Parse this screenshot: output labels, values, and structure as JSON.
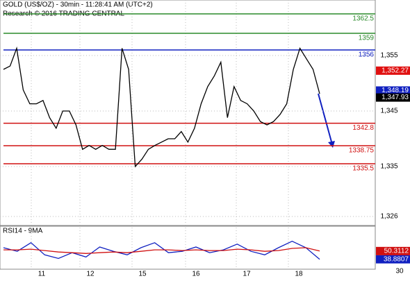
{
  "chart_data": [
    {
      "type": "line",
      "title": "GOLD (US$/OZ) - 30min - 11:28:41 AM (UTC+2)",
      "subtitle": "Research © 2016 TRADING CENTRAL",
      "x_labels": [
        "11",
        "12",
        "15",
        "16",
        "17",
        "18"
      ],
      "ylim": [
        1325,
        1365
      ],
      "yticks": [
        {
          "value": 1355,
          "label": "1,355"
        },
        {
          "value": 1345,
          "label": "1,345"
        },
        {
          "value": 1335,
          "label": "1,335"
        },
        {
          "value": 1326,
          "label": "1,326"
        }
      ],
      "grid": true,
      "series": [
        {
          "name": "GOLD",
          "color": "#000000",
          "values": [
            1352.5,
            1353.1,
            1356.3,
            1348.8,
            1346.3,
            1346.3,
            1346.9,
            1343.8,
            1341.9,
            1345,
            1345,
            1342.5,
            1338.1,
            1338.8,
            1338.1,
            1338.8,
            1338.1,
            1338.1,
            1356.3,
            1352.5,
            1335,
            1336.3,
            1338.1,
            1338.8,
            1339.4,
            1340,
            1340,
            1341.3,
            1339.4,
            1341.9,
            1346.3,
            1349.4,
            1351.3,
            1353.8,
            1343.8,
            1349.4,
            1346.9,
            1346.3,
            1345,
            1343.1,
            1342.5,
            1343.1,
            1344.4,
            1346.3,
            1352.5,
            1356.3,
            1354.4,
            1352.5,
            1348.1
          ]
        }
      ],
      "levels": [
        {
          "value": 1362.5,
          "color": "#2a8a2a"
        },
        {
          "value": 1359,
          "color": "#2a8a2a"
        },
        {
          "value": 1356,
          "color": "#1020c0"
        },
        {
          "value": 1342.8,
          "color": "#d01010"
        },
        {
          "value": 1338.75,
          "color": "#d01010"
        },
        {
          "value": 1335.5,
          "color": "#d01010"
        }
      ],
      "price_labels": [
        {
          "value": 1352.27,
          "label": "1,352.27",
          "color": "#e01010"
        },
        {
          "value": 1348.19,
          "label": "1,348.19",
          "color": "#1020c0"
        },
        {
          "value": 1347.93,
          "label": "1,347.93",
          "color": "#000000"
        }
      ]
    },
    {
      "type": "line",
      "title": "RSI14 - 9MA",
      "ylim": [
        25,
        85
      ],
      "yticks": [
        30
      ],
      "series": [
        {
          "name": "RSI14",
          "color": "#1020c0",
          "values": [
            55,
            50,
            62,
            45,
            40,
            48,
            42,
            56,
            50,
            45,
            55,
            62,
            48,
            50,
            56,
            48,
            52,
            60,
            50,
            45,
            55,
            64,
            55,
            38.8807
          ]
        },
        {
          "name": "9MA",
          "color": "#d01010",
          "values": [
            52,
            52,
            53,
            51,
            49,
            48,
            47,
            48,
            49,
            48,
            50,
            52,
            52,
            51,
            52,
            51,
            51,
            53,
            52,
            50,
            51,
            54,
            55,
            50.3112
          ]
        }
      ]
    }
  ]
}
